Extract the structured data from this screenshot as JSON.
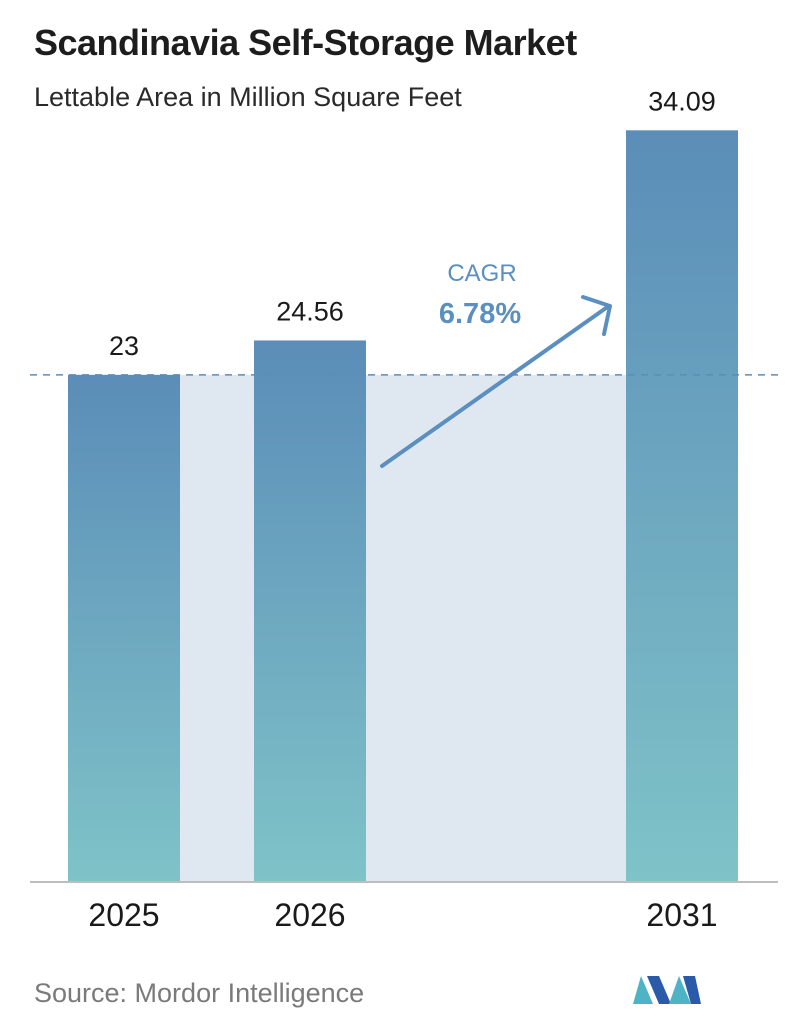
{
  "header": {
    "title": "Scandinavia Self-Storage Market",
    "subtitle": "Lettable Area in Million Square Feet"
  },
  "chart_data": {
    "type": "bar",
    "categories": [
      "2025",
      "2026",
      "2031"
    ],
    "values": [
      23,
      24.56,
      34.09
    ],
    "value_labels": [
      "23",
      "24.56",
      "34.09"
    ],
    "ylim": [
      0,
      36
    ],
    "annotation": {
      "label": "CAGR",
      "value": "6.78%"
    },
    "reference_line": 23,
    "colors": {
      "bar_top": "#5b8db8",
      "bar_bottom": "#7fc3c8",
      "fill_area": "#dfe7f0",
      "annotation": "#5b8fbf",
      "reference_line": "#5b8db8",
      "baseline": "#bdbdbd"
    }
  },
  "footer": {
    "source": "Source:  Mordor Intelligence",
    "logo_colors": [
      "#2b5aa8",
      "#4fb3c6"
    ]
  }
}
